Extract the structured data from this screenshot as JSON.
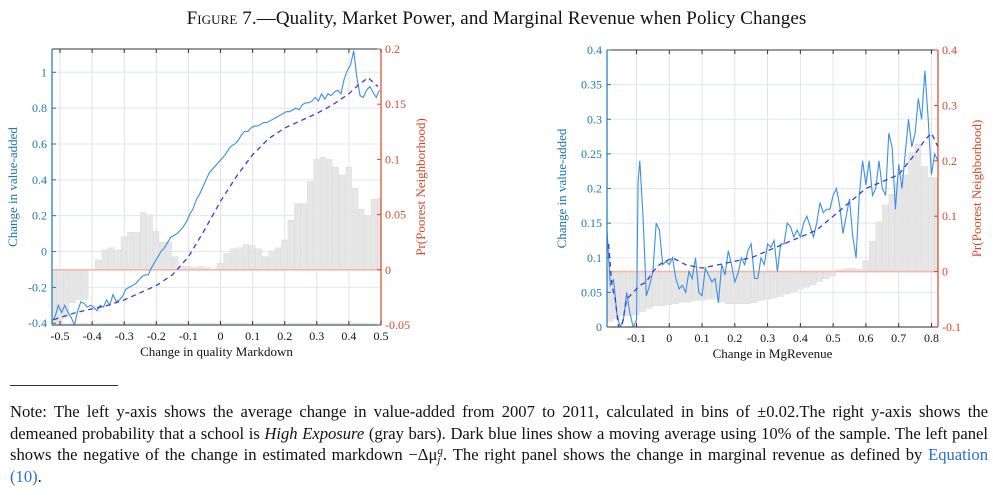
{
  "figure": {
    "label": "Figure 7.",
    "title": "—Quality, Market Power, and Marginal Revenue when Policy Changes"
  },
  "colors": {
    "left_axis": "#1f77b4",
    "right_axis": "#d9472b",
    "line": "#3a8ee6",
    "moving_average": "#3b3bd6",
    "bars": "#e6e6e6",
    "zero_line": "#f2b8ad",
    "grid": "#dde8f3",
    "link": "#2b6fd6"
  },
  "chart_data": [
    {
      "type": "bar+line",
      "xlabel": "Change in quality Markdown",
      "ylabel_left": "Change in value-added",
      "ylabel_right": "Pr(Poorest Neighborhood)",
      "xlim": [
        -0.525,
        0.5
      ],
      "ylim_left": [
        -0.41,
        1.13
      ],
      "ylim_right": [
        -0.05,
        0.2
      ],
      "grid": true,
      "xticks": [
        "-0.5",
        "-0.4",
        "-0.3",
        "-0.2",
        "-0.1",
        "0",
        "0.1",
        "0.2",
        "0.3",
        "0.4",
        "0.5"
      ],
      "xtick_values": [
        -0.5,
        -0.4,
        -0.3,
        -0.2,
        -0.1,
        0,
        0.1,
        0.2,
        0.3,
        0.4,
        0.5
      ],
      "yticks_left": [
        "-0.4",
        "-0.2",
        "0",
        "0.2",
        "0.4",
        "0.6",
        "0.8",
        "1"
      ],
      "ytick_left_values": [
        -0.4,
        -0.2,
        0,
        0.2,
        0.4,
        0.6,
        0.8,
        1
      ],
      "yticks_right": [
        "-0.05",
        "0",
        "0.05",
        "0.1",
        "0.15",
        "0.2"
      ],
      "ytick_right_values": [
        -0.05,
        0,
        0.05,
        0.1,
        0.15,
        0.2
      ],
      "bars": {
        "name": "High Exposure (gray bars)",
        "x": [
          -0.52,
          -0.5,
          -0.48,
          -0.46,
          -0.44,
          -0.42,
          -0.4,
          -0.38,
          -0.36,
          -0.34,
          -0.32,
          -0.3,
          -0.28,
          -0.26,
          -0.24,
          -0.22,
          -0.2,
          -0.18,
          -0.16,
          -0.14,
          -0.12,
          -0.1,
          -0.08,
          -0.06,
          -0.04,
          -0.02,
          0.0,
          0.02,
          0.04,
          0.06,
          0.08,
          0.1,
          0.12,
          0.14,
          0.16,
          0.18,
          0.2,
          0.22,
          0.24,
          0.26,
          0.28,
          0.3,
          0.32,
          0.34,
          0.36,
          0.38,
          0.4,
          0.42,
          0.44,
          0.46,
          0.48,
          0.5
        ],
        "values": [
          -0.048,
          -0.048,
          -0.043,
          -0.03,
          -0.027,
          -0.027,
          0.0,
          0.009,
          0.018,
          0.02,
          0.018,
          0.03,
          0.034,
          0.034,
          0.052,
          0.05,
          0.035,
          0.025,
          0.025,
          0.012,
          0.003,
          0.003,
          0.002,
          0.003,
          0.002,
          0.0,
          0.006,
          0.015,
          0.019,
          0.02,
          0.023,
          0.022,
          0.019,
          0.012,
          0.017,
          0.02,
          0.027,
          0.045,
          0.06,
          0.06,
          0.08,
          0.1,
          0.102,
          0.1,
          0.093,
          0.086,
          0.093,
          0.074,
          0.055,
          0.049,
          0.064,
          0.065
        ]
      },
      "series": [
        {
          "name": "Average change in value-added",
          "style": "solid",
          "x": [
            -0.525,
            -0.515,
            -0.505,
            -0.495,
            -0.485,
            -0.475,
            -0.465,
            -0.455,
            -0.445,
            -0.435,
            -0.425,
            -0.415,
            -0.405,
            -0.395,
            -0.385,
            -0.375,
            -0.365,
            -0.355,
            -0.345,
            -0.335,
            -0.325,
            -0.315,
            -0.305,
            -0.295,
            -0.285,
            -0.275,
            -0.265,
            -0.255,
            -0.245,
            -0.235,
            -0.225,
            -0.215,
            -0.205,
            -0.195,
            -0.185,
            -0.175,
            -0.165,
            -0.155,
            -0.145,
            -0.135,
            -0.125,
            -0.115,
            -0.105,
            -0.095,
            -0.085,
            -0.075,
            -0.065,
            -0.055,
            -0.045,
            -0.035,
            -0.025,
            -0.015,
            -0.005,
            0.005,
            0.015,
            0.025,
            0.035,
            0.045,
            0.055,
            0.065,
            0.075,
            0.085,
            0.095,
            0.105,
            0.115,
            0.125,
            0.135,
            0.145,
            0.155,
            0.165,
            0.175,
            0.185,
            0.195,
            0.205,
            0.215,
            0.225,
            0.235,
            0.245,
            0.255,
            0.265,
            0.275,
            0.285,
            0.295,
            0.305,
            0.315,
            0.325,
            0.335,
            0.345,
            0.355,
            0.365,
            0.375,
            0.385,
            0.395,
            0.405,
            0.415,
            0.425,
            0.435,
            0.445,
            0.455,
            0.465,
            0.475,
            0.485,
            0.495
          ],
          "y": [
            -0.39,
            -0.36,
            -0.3,
            -0.34,
            -0.3,
            -0.34,
            -0.37,
            -0.41,
            -0.33,
            -0.28,
            -0.29,
            -0.31,
            -0.3,
            -0.31,
            -0.33,
            -0.3,
            -0.31,
            -0.27,
            -0.3,
            -0.24,
            -0.28,
            -0.27,
            -0.25,
            -0.21,
            -0.2,
            -0.19,
            -0.18,
            -0.16,
            -0.14,
            -0.13,
            -0.13,
            -0.09,
            -0.06,
            -0.03,
            0.0,
            0.02,
            0.05,
            0.08,
            0.09,
            0.1,
            0.12,
            0.14,
            0.17,
            0.21,
            0.24,
            0.29,
            0.32,
            0.36,
            0.4,
            0.44,
            0.46,
            0.48,
            0.5,
            0.52,
            0.54,
            0.57,
            0.59,
            0.6,
            0.62,
            0.65,
            0.67,
            0.67,
            0.69,
            0.7,
            0.7,
            0.71,
            0.72,
            0.72,
            0.73,
            0.74,
            0.75,
            0.76,
            0.77,
            0.78,
            0.78,
            0.79,
            0.8,
            0.79,
            0.82,
            0.83,
            0.83,
            0.84,
            0.86,
            0.84,
            0.88,
            0.85,
            0.88,
            0.87,
            0.89,
            0.9,
            0.88,
            0.96,
            1.01,
            1.04,
            1.12,
            0.97,
            0.87,
            0.86,
            0.9,
            0.92,
            0.89,
            0.86,
            0.9
          ]
        },
        {
          "name": "Moving average (10% of sample)",
          "style": "dashed",
          "x": [
            -0.52,
            -0.45,
            -0.4,
            -0.35,
            -0.3,
            -0.25,
            -0.2,
            -0.15,
            -0.1,
            -0.05,
            0.0,
            0.05,
            0.1,
            0.15,
            0.2,
            0.25,
            0.3,
            0.35,
            0.4,
            0.43,
            0.46,
            0.49
          ],
          "y": [
            -0.38,
            -0.34,
            -0.32,
            -0.3,
            -0.27,
            -0.23,
            -0.19,
            -0.13,
            -0.03,
            0.12,
            0.28,
            0.42,
            0.54,
            0.63,
            0.69,
            0.73,
            0.77,
            0.82,
            0.88,
            0.93,
            0.97,
            0.92
          ]
        }
      ]
    },
    {
      "type": "bar+line",
      "xlabel": "Change in MgRevenue",
      "ylabel_left": "Change in value-added",
      "ylabel_right": "Pr(Poorest Neighborhood)",
      "xlim": [
        -0.19,
        0.82
      ],
      "ylim_left": [
        0,
        0.4
      ],
      "ylim_right": [
        -0.1,
        0.4
      ],
      "grid": true,
      "xticks": [
        "-0.1",
        "0",
        "0.1",
        "0.2",
        "0.3",
        "0.4",
        "0.5",
        "0.6",
        "0.7",
        "0.8"
      ],
      "xtick_values": [
        -0.1,
        0,
        0.1,
        0.2,
        0.3,
        0.4,
        0.5,
        0.6,
        0.7,
        0.8
      ],
      "yticks_left": [
        "0",
        "0.05",
        "0.1",
        "0.15",
        "0.2",
        "0.25",
        "0.3",
        "0.35",
        "0.4"
      ],
      "ytick_left_values": [
        0,
        0.05,
        0.1,
        0.15,
        0.2,
        0.25,
        0.3,
        0.35,
        0.4
      ],
      "yticks_right": [
        "-0.1",
        "0",
        "0.1",
        "0.2",
        "0.3",
        "0.4"
      ],
      "ytick_right_values": [
        -0.1,
        0,
        0.1,
        0.2,
        0.3,
        0.4
      ],
      "bars": {
        "name": "High Exposure (gray bars)",
        "x": [
          -0.18,
          -0.16,
          -0.14,
          -0.12,
          -0.1,
          -0.08,
          -0.06,
          -0.04,
          -0.02,
          0.0,
          0.02,
          0.04,
          0.06,
          0.08,
          0.1,
          0.12,
          0.14,
          0.16,
          0.18,
          0.2,
          0.22,
          0.24,
          0.26,
          0.28,
          0.3,
          0.32,
          0.34,
          0.36,
          0.38,
          0.4,
          0.42,
          0.44,
          0.46,
          0.48,
          0.5,
          0.52,
          0.54,
          0.56,
          0.58,
          0.6,
          0.62,
          0.64,
          0.66,
          0.68,
          0.7,
          0.72,
          0.74,
          0.76,
          0.78,
          0.8,
          0.82
        ],
        "values": [
          -0.09,
          -0.085,
          -0.08,
          -0.08,
          -0.078,
          -0.072,
          -0.066,
          -0.062,
          -0.062,
          -0.06,
          -0.058,
          -0.055,
          -0.055,
          -0.052,
          -0.052,
          -0.05,
          -0.05,
          -0.055,
          -0.058,
          -0.058,
          -0.058,
          -0.058,
          -0.056,
          -0.052,
          -0.05,
          -0.048,
          -0.045,
          -0.04,
          -0.036,
          -0.032,
          -0.028,
          -0.024,
          -0.018,
          -0.013,
          -0.008,
          0.003,
          0.005,
          0.006,
          0.004,
          0.02,
          0.055,
          0.09,
          0.12,
          0.14,
          0.16,
          0.175,
          0.215,
          0.23,
          0.19,
          0.17,
          0.17
        ]
      },
      "series": [
        {
          "name": "Average change in value-added",
          "style": "solid",
          "x": [
            -0.19,
            -0.18,
            -0.17,
            -0.16,
            -0.15,
            -0.14,
            -0.13,
            -0.12,
            -0.11,
            -0.1,
            -0.095,
            -0.09,
            -0.085,
            -0.08,
            -0.07,
            -0.06,
            -0.05,
            -0.04,
            -0.03,
            -0.02,
            -0.01,
            0.0,
            0.01,
            0.02,
            0.03,
            0.04,
            0.05,
            0.06,
            0.07,
            0.08,
            0.09,
            0.1,
            0.11,
            0.12,
            0.13,
            0.14,
            0.15,
            0.16,
            0.17,
            0.18,
            0.19,
            0.2,
            0.21,
            0.22,
            0.23,
            0.24,
            0.25,
            0.26,
            0.27,
            0.28,
            0.29,
            0.3,
            0.31,
            0.32,
            0.33,
            0.34,
            0.35,
            0.36,
            0.37,
            0.38,
            0.39,
            0.4,
            0.41,
            0.42,
            0.43,
            0.44,
            0.45,
            0.46,
            0.47,
            0.48,
            0.49,
            0.5,
            0.51,
            0.52,
            0.53,
            0.54,
            0.55,
            0.56,
            0.57,
            0.58,
            0.59,
            0.6,
            0.61,
            0.62,
            0.63,
            0.64,
            0.65,
            0.66,
            0.67,
            0.68,
            0.69,
            0.7,
            0.71,
            0.72,
            0.73,
            0.74,
            0.75,
            0.76,
            0.77,
            0.78,
            0.79,
            0.8,
            0.81,
            0.82
          ],
          "y": [
            0.14,
            0.06,
            0.068,
            0.02,
            0.0,
            0.01,
            0.05,
            0.02,
            0.0,
            0.01,
            0.21,
            0.24,
            0.2,
            0.16,
            0.045,
            0.06,
            0.08,
            0.15,
            0.14,
            0.09,
            0.095,
            0.09,
            0.1,
            0.07,
            0.055,
            0.06,
            0.05,
            0.08,
            0.07,
            0.1,
            0.05,
            0.045,
            0.085,
            0.075,
            0.065,
            0.07,
            0.035,
            0.09,
            0.075,
            0.11,
            0.09,
            0.065,
            0.078,
            0.1,
            0.09,
            0.11,
            0.12,
            0.07,
            0.07,
            0.1,
            0.09,
            0.12,
            0.115,
            0.125,
            0.08,
            0.12,
            0.12,
            0.15,
            0.145,
            0.13,
            0.14,
            0.13,
            0.15,
            0.16,
            0.145,
            0.13,
            0.15,
            0.18,
            0.165,
            0.17,
            0.17,
            0.19,
            0.2,
            0.175,
            0.135,
            0.16,
            0.185,
            0.13,
            0.1,
            0.19,
            0.24,
            0.205,
            0.24,
            0.19,
            0.2,
            0.24,
            0.2,
            0.19,
            0.28,
            0.26,
            0.17,
            0.235,
            0.2,
            0.25,
            0.3,
            0.26,
            0.28,
            0.33,
            0.3,
            0.37,
            0.3,
            0.22,
            0.25,
            0.24
          ]
        },
        {
          "name": "Moving average (10% of sample)",
          "style": "dashed",
          "x": [
            -0.185,
            -0.175,
            -0.165,
            -0.155,
            -0.145,
            -0.13,
            -0.11,
            -0.09,
            -0.07,
            -0.05,
            -0.03,
            -0.01,
            0.01,
            0.05,
            0.1,
            0.15,
            0.2,
            0.25,
            0.3,
            0.35,
            0.4,
            0.45,
            0.5,
            0.55,
            0.6,
            0.65,
            0.7,
            0.75,
            0.78,
            0.8,
            0.82
          ],
          "y": [
            0.12,
            0.06,
            0.04,
            0.0,
            0.0,
            0.04,
            0.05,
            0.06,
            0.065,
            0.08,
            0.09,
            0.095,
            0.1,
            0.09,
            0.085,
            0.09,
            0.095,
            0.1,
            0.11,
            0.12,
            0.13,
            0.14,
            0.16,
            0.18,
            0.2,
            0.21,
            0.22,
            0.25,
            0.27,
            0.28,
            0.26
          ]
        }
      ]
    }
  ],
  "note": {
    "p1": "Note: The left y-axis shows the average change in value-added from 2007 to 2011, calculated in bins of ±0.02.The right y-axis shows the demeaned probability that a school is ",
    "italic": "High Exposure",
    "p2": " (gray bars). Dark blue lines show a moving average using 10% of the sample. The left panel shows the negative of the change in estimated markdown ",
    "math": "−Δμ",
    "math_sup": "q",
    "math_sub": "j",
    "p3": ". The right panel shows the change in marginal revenue as defined by ",
    "link": "Equation (10)",
    "p4": "."
  }
}
